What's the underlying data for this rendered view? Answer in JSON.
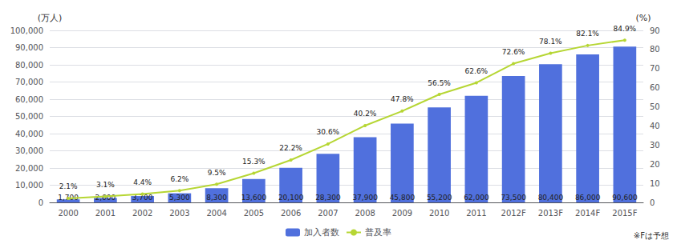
{
  "chart_data": {
    "type": "bar",
    "categories": [
      "2000",
      "2001",
      "2002",
      "2003",
      "2004",
      "2005",
      "2006",
      "2007",
      "2008",
      "2009",
      "2010",
      "2011",
      "2012F",
      "2013F",
      "2014F",
      "2015F"
    ],
    "series": [
      {
        "name": "加入者数",
        "type": "bar",
        "values": [
          1700,
          2600,
          3700,
          5300,
          8300,
          13600,
          20100,
          28300,
          37900,
          45800,
          55200,
          62000,
          73500,
          80400,
          86000,
          90600
        ],
        "value_labels": [
          "1,700",
          "2,600",
          "3,700",
          "5,300",
          "8,300",
          "13,600",
          "20,100",
          "28,300",
          "37,900",
          "45,800",
          "55,200",
          "62,000",
          "73,500",
          "80,400",
          "86,000",
          "90,600"
        ]
      },
      {
        "name": "普及率",
        "type": "line",
        "axis": "y2",
        "values": [
          2.1,
          3.1,
          4.4,
          6.2,
          9.5,
          15.3,
          22.2,
          30.6,
          40.2,
          47.8,
          56.5,
          62.6,
          72.6,
          78.1,
          82.1,
          84.9
        ],
        "value_labels": [
          "2.1%",
          "3.1%",
          "4.4%",
          "6.2%",
          "9.5%",
          "15.3%",
          "22.2%",
          "30.6%",
          "40.2%",
          "47.8%",
          "56.5%",
          "62.6%",
          "72.6%",
          "78.1%",
          "82.1%",
          "84.9%"
        ]
      }
    ],
    "ylabel": "(万人)",
    "y2label": "(%)",
    "ylim": [
      0,
      100000
    ],
    "yticks": [
      0,
      {
        "value": 10000,
        "label": "10,000"
      },
      {
        "value": 20000,
        "label": "20,000"
      },
      {
        "value": 30000,
        "label": "30,000"
      },
      {
        "value": 40000,
        "label": "40,000"
      },
      {
        "value": 50000,
        "label": "50,000"
      },
      {
        "value": 60000,
        "label": "60,000"
      },
      {
        "value": 70000,
        "label": "70,000"
      },
      {
        "value": 80000,
        "label": "80,000"
      },
      {
        "value": 90000,
        "label": "90,000"
      },
      {
        "value": 100000,
        "label": "100,000"
      }
    ],
    "y2lim": [
      0,
      90
    ],
    "y2ticks": [
      0,
      10,
      20,
      30,
      40,
      50,
      60,
      70,
      80,
      90
    ],
    "grid": true,
    "legend": "bottom",
    "data_labels": true,
    "annotation": "※Fは予想"
  }
}
